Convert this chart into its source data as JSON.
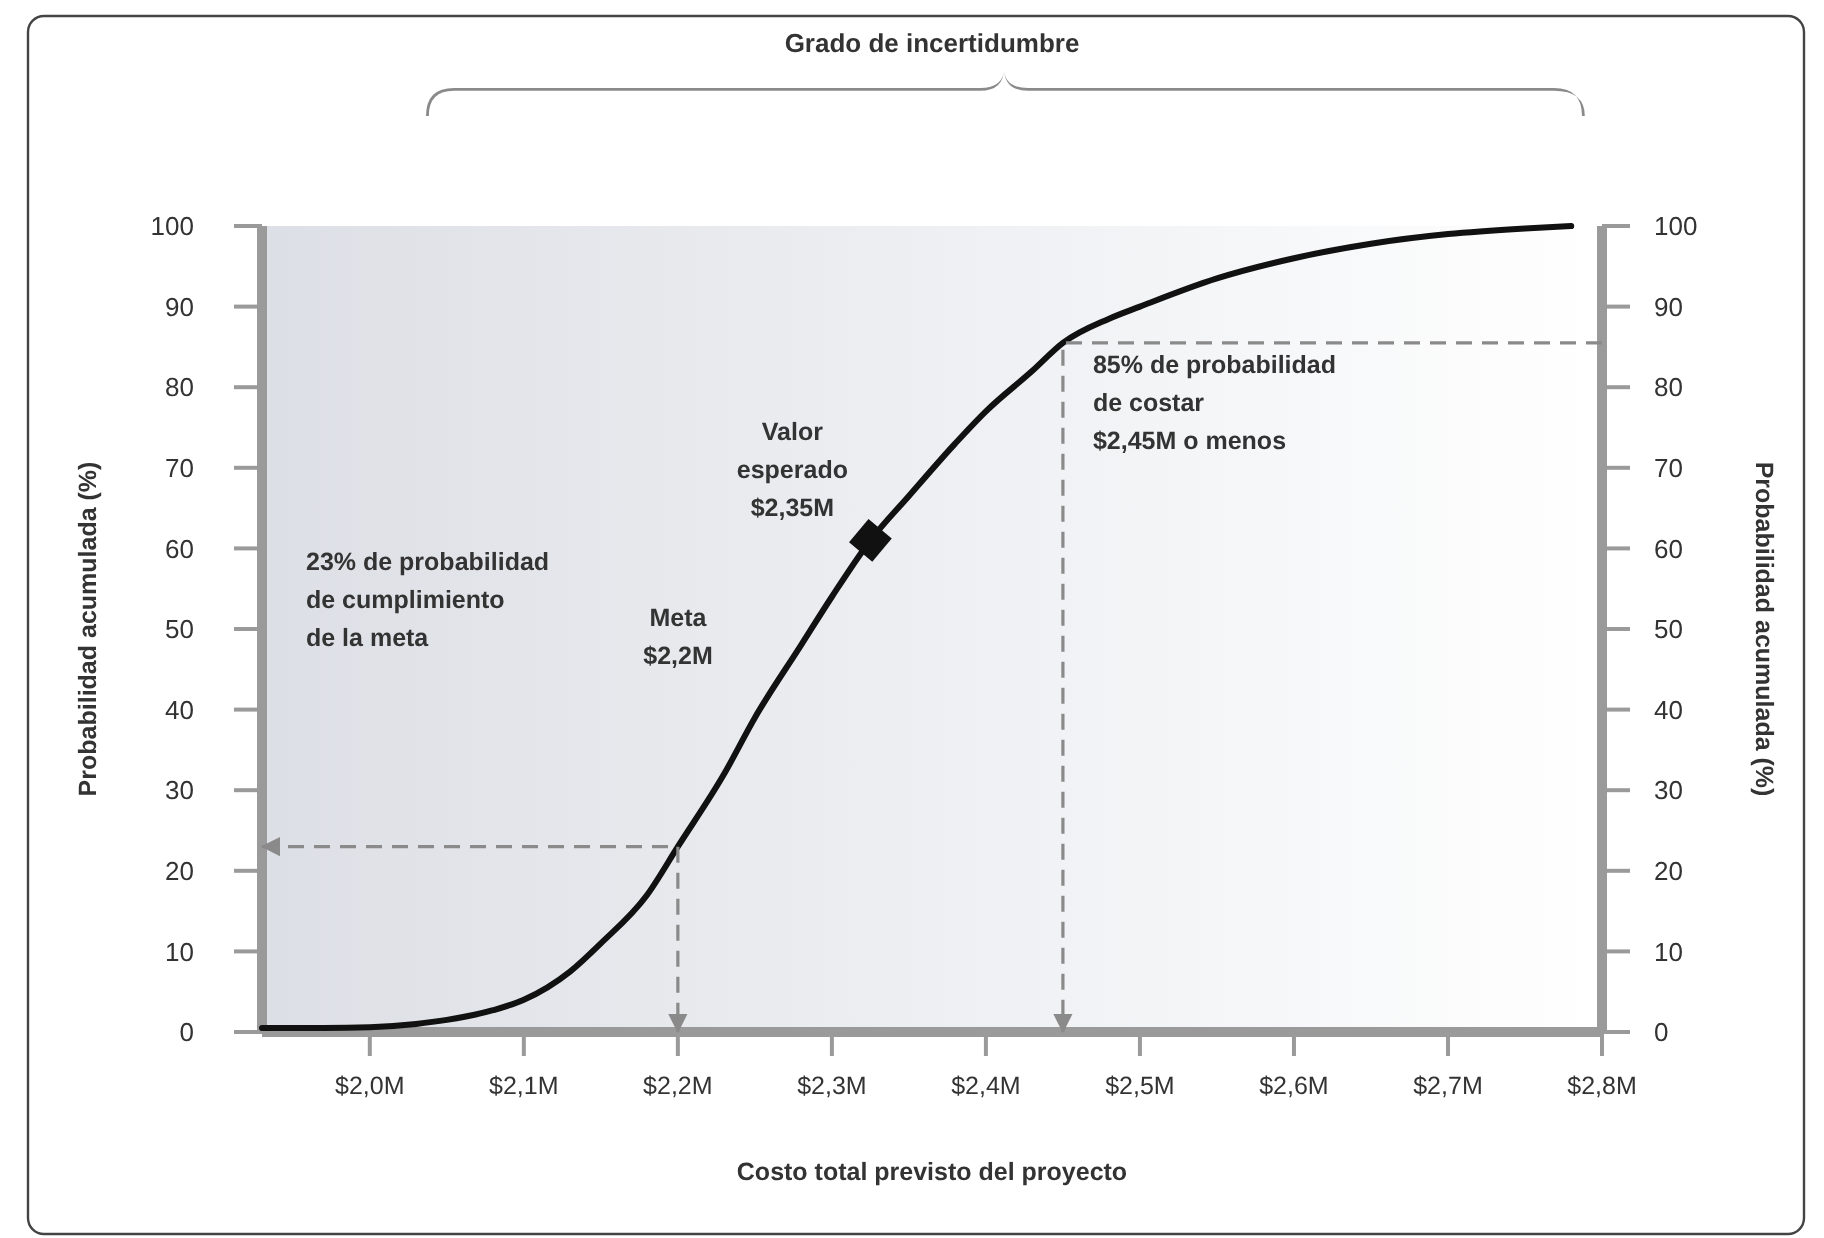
{
  "chart_data": {
    "type": "line",
    "title": "Grado de incertidumbre",
    "xlabel": "Costo total previsto del proyecto",
    "ylabel": "Probabilidad acumulada (%)",
    "y2label": "Probabilidad acumulada (%)",
    "xlim": [
      1.93,
      2.8
    ],
    "xticks": [
      {
        "value": 2.0,
        "label": "$2,0M"
      },
      {
        "value": 2.1,
        "label": "$2,1M"
      },
      {
        "value": 2.2,
        "label": "$2,2M"
      },
      {
        "value": 2.3,
        "label": "$2,3M"
      },
      {
        "value": 2.4,
        "label": "$2,4M"
      },
      {
        "value": 2.5,
        "label": "$2,5M"
      },
      {
        "value": 2.6,
        "label": "$2,6M"
      },
      {
        "value": 2.7,
        "label": "$2,7M"
      },
      {
        "value": 2.8,
        "label": "$2,8M"
      }
    ],
    "ylim": [
      0,
      100
    ],
    "yticks": [
      0,
      10,
      20,
      30,
      40,
      50,
      60,
      70,
      80,
      90,
      100
    ],
    "y2lim": [
      0,
      100
    ],
    "y2ticks": [
      0,
      10,
      20,
      30,
      40,
      50,
      60,
      70,
      80,
      90,
      100
    ],
    "grid": false,
    "series": [
      {
        "color": "#111111",
        "marker": "none",
        "line_style": "solid",
        "x": [
          1.93,
          1.97,
          2.0,
          2.03,
          2.05,
          2.08,
          2.1,
          2.13,
          2.15,
          2.18,
          2.2,
          2.23,
          2.25,
          2.28,
          2.3,
          2.325,
          2.35,
          2.38,
          2.4,
          2.43,
          2.45,
          2.48,
          2.5,
          2.55,
          2.6,
          2.65,
          2.7,
          2.75,
          2.78
        ],
        "values": [
          0.5,
          0.5,
          0.6,
          1,
          1.5,
          2.7,
          4,
          7.5,
          11,
          17,
          23,
          32,
          39,
          48,
          54,
          61,
          66.5,
          73,
          77,
          82,
          85.5,
          88.5,
          90,
          93.5,
          96,
          97.8,
          99,
          99.7,
          100
        ]
      },
      {
        "type": "scatter",
        "color": "#111111",
        "marker": "diamond",
        "x": [
          2.325
        ],
        "values": [
          61
        ]
      },
      {
        "type": "line",
        "color": "#8a8a8a",
        "marker": "none",
        "line_style": "dashed",
        "x": [
          1.93,
          2.2,
          2.2
        ],
        "values": [
          23,
          23,
          0
        ]
      },
      {
        "type": "line",
        "color": "#8a8a8a",
        "marker": "none",
        "line_style": "dashed",
        "x": [
          2.8,
          2.45,
          2.45
        ],
        "values": [
          85.5,
          85.5,
          0
        ]
      }
    ],
    "annotations": [
      "23% de probabilidad\nde cumplimiento\nde la meta",
      "Meta\n$2,2M",
      {
        "text": "Valor\nesperado\n$2,35M",
        "x": 2.325,
        "y": 61
      },
      {
        "text": "85% de probabilidad\nde costar\n$2,45M o menos",
        "x": 2.45,
        "y": 85.5
      }
    ]
  }
}
